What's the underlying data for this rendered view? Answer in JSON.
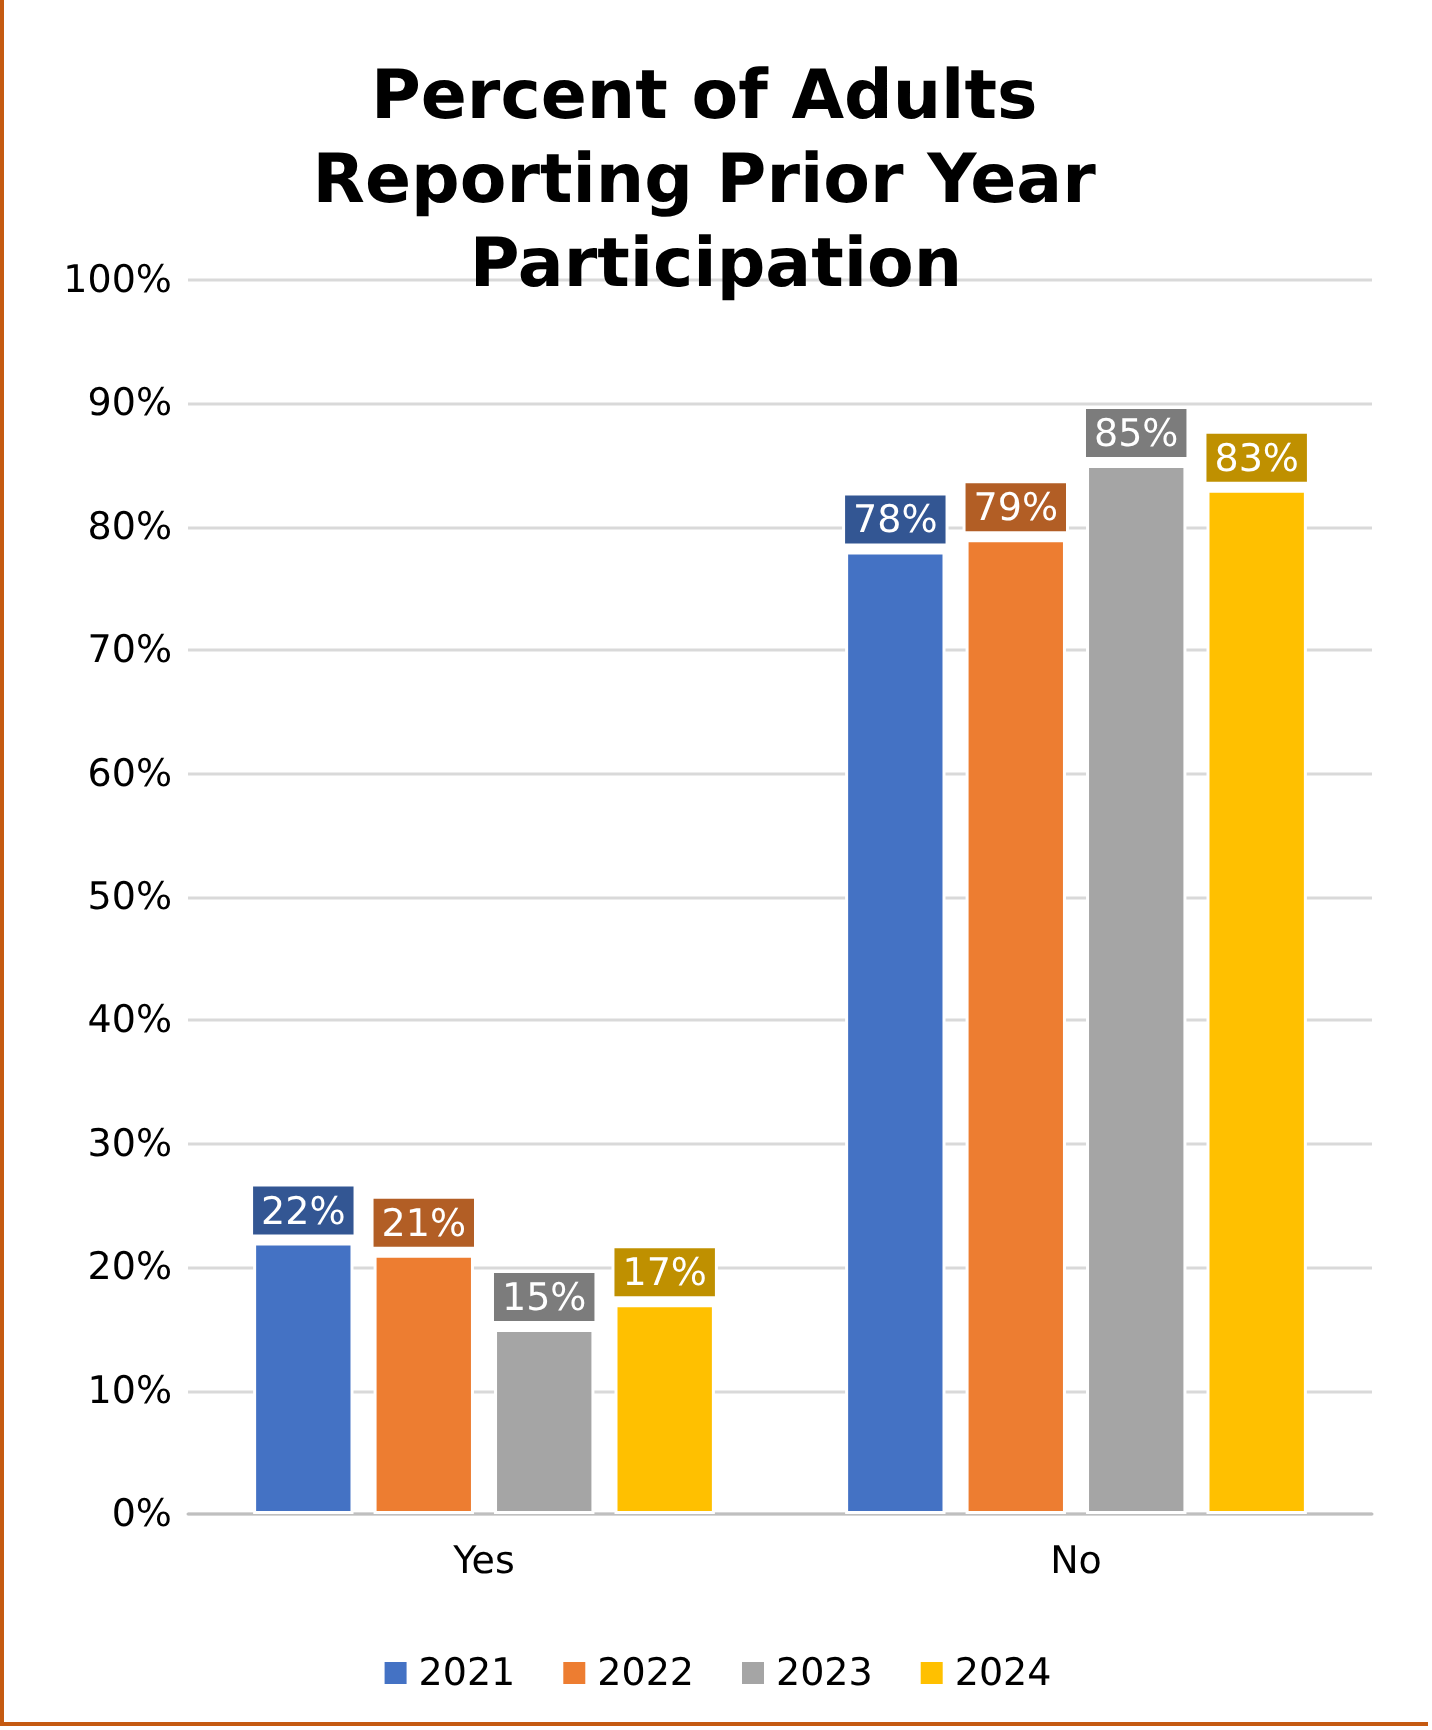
{
  "chart_data": {
    "type": "bar",
    "title": "Percent of Adults Reporting Prior Year Participation",
    "categories": [
      "Yes",
      "No"
    ],
    "series": [
      {
        "name": "2021",
        "color": "#4472c4",
        "values": [
          22,
          78
        ],
        "value_labels": [
          "22%",
          "78%"
        ]
      },
      {
        "name": "2022",
        "color": "#ed7d31",
        "values": [
          21,
          79
        ],
        "value_labels": [
          "21%",
          "79%"
        ]
      },
      {
        "name": "2023",
        "color": "#a5a5a5",
        "values": [
          15,
          85
        ],
        "value_labels": [
          "15%",
          "85%"
        ]
      },
      {
        "name": "2024",
        "color": "#ffc000",
        "values": [
          17,
          83
        ],
        "value_labels": [
          "17%",
          "83%"
        ]
      }
    ],
    "ylim": [
      0,
      100
    ],
    "yticks": [
      {
        "value": 0,
        "label": "0%"
      },
      {
        "value": 10,
        "label": "10%"
      },
      {
        "value": 20,
        "label": "20%"
      },
      {
        "value": 30,
        "label": "30%"
      },
      {
        "value": 40,
        "label": "40%"
      },
      {
        "value": 50,
        "label": "50%"
      },
      {
        "value": 60,
        "label": "60%"
      },
      {
        "value": 70,
        "label": "70%"
      },
      {
        "value": 80,
        "label": "80%"
      },
      {
        "value": 90,
        "label": "90%"
      },
      {
        "value": 100,
        "label": "100%"
      }
    ],
    "grid": "y",
    "legend": "bottom"
  }
}
